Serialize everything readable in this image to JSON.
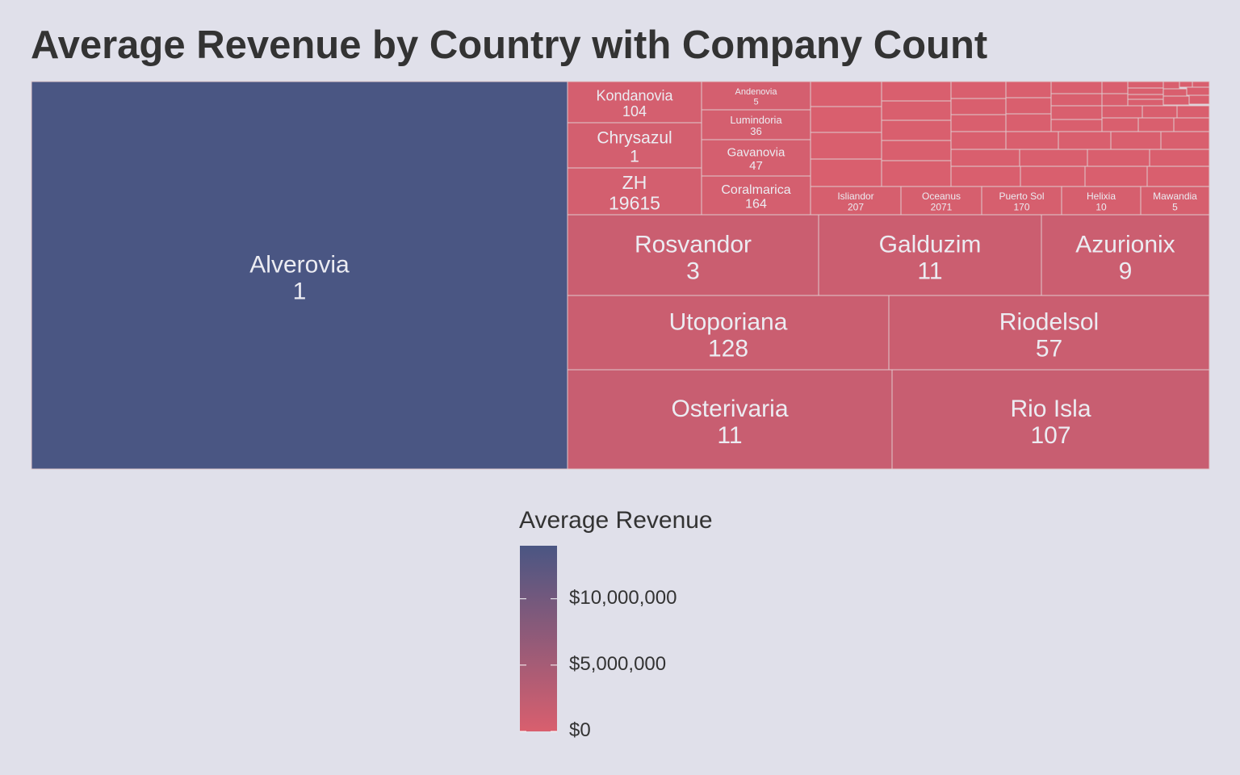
{
  "chart_data": {
    "type": "treemap",
    "title": "Average Revenue by Country with Company Count",
    "value_label": "Company Count",
    "color_label": "Average Revenue",
    "colors": {
      "low": "#d95f6e",
      "high": "#4a5683",
      "background": "#e0e0ea",
      "border": "#e0c8cc"
    },
    "legend": {
      "title": "Average Revenue",
      "range": [
        0,
        14000000
      ],
      "ticks": [
        {
          "value": 10000000,
          "label": "$10,000,000"
        },
        {
          "value": 5000000,
          "label": "$5,000,000"
        },
        {
          "value": 0,
          "label": "$0"
        }
      ]
    },
    "nodes": [
      {
        "name": "Alverovia",
        "count": "1",
        "avg_revenue": 14000000
      },
      {
        "name": "Kondanovia",
        "count": "104",
        "avg_revenue": 500000
      },
      {
        "name": "Chrysazul",
        "count": "1",
        "avg_revenue": 600000
      },
      {
        "name": "ZH",
        "count": "19615",
        "avg_revenue": 600000
      },
      {
        "name": "Andenovia",
        "count": "5",
        "avg_revenue": 450000
      },
      {
        "name": "Lumindoria",
        "count": "36",
        "avg_revenue": 450000
      },
      {
        "name": "Gavanovia",
        "count": "47",
        "avg_revenue": 450000
      },
      {
        "name": "Coralmarica",
        "count": "164",
        "avg_revenue": 500000
      },
      {
        "name": "Isliandor",
        "count": "207",
        "avg_revenue": 300000
      },
      {
        "name": "Oceanus",
        "count": "2071",
        "avg_revenue": 300000
      },
      {
        "name": "Puerto Sol",
        "count": "170",
        "avg_revenue": 300000
      },
      {
        "name": "Helixia",
        "count": "10",
        "avg_revenue": 300000
      },
      {
        "name": "Mawandia",
        "count": "5",
        "avg_revenue": 300000
      },
      {
        "name": "Rosvandor",
        "count": "3",
        "avg_revenue": 1500000
      },
      {
        "name": "Galduzim",
        "count": "11",
        "avg_revenue": 1400000
      },
      {
        "name": "Azurionix",
        "count": "9",
        "avg_revenue": 1400000
      },
      {
        "name": "Utoporiana",
        "count": "128",
        "avg_revenue": 1500000
      },
      {
        "name": "Riodelsol",
        "count": "57",
        "avg_revenue": 1500000
      },
      {
        "name": "Osterivaria",
        "count": "11",
        "avg_revenue": 1700000
      },
      {
        "name": "Rio Isla",
        "count": "107",
        "avg_revenue": 1700000
      }
    ],
    "unlabeled_small_tiles": 51
  }
}
